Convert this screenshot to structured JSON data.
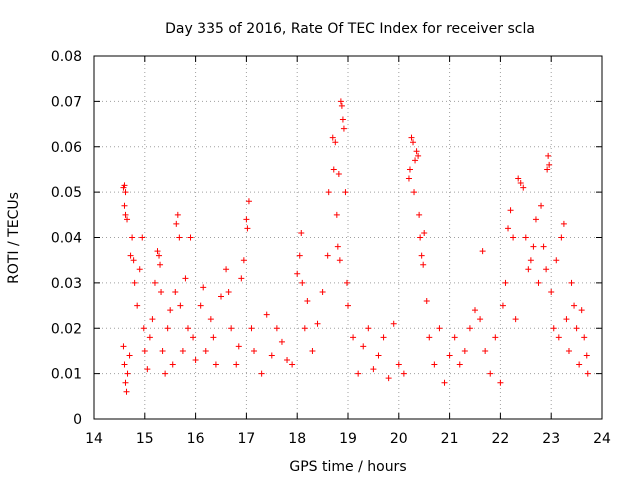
{
  "chart_data": {
    "type": "scatter",
    "title": "Day 335 of 2016, Rate Of TEC Index for receiver scla",
    "xlabel": "GPS time / hours",
    "ylabel": "ROTI / TECUs",
    "xlim": [
      14,
      24
    ],
    "ylim": [
      0,
      0.08
    ],
    "xticks": [
      14,
      15,
      16,
      17,
      18,
      19,
      20,
      21,
      22,
      23,
      24
    ],
    "yticks": [
      0,
      0.01,
      0.02,
      0.03,
      0.04,
      0.05,
      0.06,
      0.07,
      0.08
    ],
    "ytick_labels": [
      "0",
      "0.01",
      "0.02",
      "0.03",
      "0.04",
      "0.05",
      "0.06",
      "0.07",
      "0.08"
    ],
    "grid": true,
    "marker": "plus",
    "color": "#ff0000",
    "x_range_of_data": [
      14.55,
      23.75
    ],
    "series": [
      {
        "name": "ROTI",
        "points": [
          [
            14.58,
            0.051
          ],
          [
            14.6,
            0.0515
          ],
          [
            14.62,
            0.05
          ],
          [
            14.6,
            0.047
          ],
          [
            14.62,
            0.045
          ],
          [
            14.65,
            0.044
          ],
          [
            14.58,
            0.016
          ],
          [
            14.6,
            0.012
          ],
          [
            14.62,
            0.008
          ],
          [
            14.64,
            0.006
          ],
          [
            14.66,
            0.01
          ],
          [
            14.7,
            0.014
          ],
          [
            14.72,
            0.036
          ],
          [
            14.75,
            0.04
          ],
          [
            14.78,
            0.035
          ],
          [
            14.8,
            0.03
          ],
          [
            14.85,
            0.025
          ],
          [
            14.9,
            0.033
          ],
          [
            14.95,
            0.04
          ],
          [
            14.98,
            0.02
          ],
          [
            15.0,
            0.015
          ],
          [
            15.05,
            0.011
          ],
          [
            15.1,
            0.018
          ],
          [
            15.15,
            0.022
          ],
          [
            15.2,
            0.03
          ],
          [
            15.25,
            0.037
          ],
          [
            15.28,
            0.036
          ],
          [
            15.3,
            0.034
          ],
          [
            15.32,
            0.028
          ],
          [
            15.35,
            0.015
          ],
          [
            15.4,
            0.01
          ],
          [
            15.45,
            0.02
          ],
          [
            15.5,
            0.024
          ],
          [
            15.55,
            0.012
          ],
          [
            15.6,
            0.028
          ],
          [
            15.62,
            0.043
          ],
          [
            15.65,
            0.045
          ],
          [
            15.68,
            0.04
          ],
          [
            15.7,
            0.025
          ],
          [
            15.75,
            0.015
          ],
          [
            15.8,
            0.031
          ],
          [
            15.85,
            0.02
          ],
          [
            15.9,
            0.04
          ],
          [
            15.95,
            0.018
          ],
          [
            16.0,
            0.013
          ],
          [
            16.1,
            0.025
          ],
          [
            16.15,
            0.029
          ],
          [
            16.2,
            0.015
          ],
          [
            16.3,
            0.022
          ],
          [
            16.35,
            0.018
          ],
          [
            16.4,
            0.012
          ],
          [
            16.5,
            0.027
          ],
          [
            16.6,
            0.033
          ],
          [
            16.65,
            0.028
          ],
          [
            16.7,
            0.02
          ],
          [
            16.8,
            0.012
          ],
          [
            16.85,
            0.016
          ],
          [
            16.9,
            0.031
          ],
          [
            16.95,
            0.035
          ],
          [
            17.0,
            0.044
          ],
          [
            17.02,
            0.042
          ],
          [
            17.05,
            0.048
          ],
          [
            17.1,
            0.02
          ],
          [
            17.15,
            0.015
          ],
          [
            17.3,
            0.01
          ],
          [
            17.4,
            0.023
          ],
          [
            17.5,
            0.014
          ],
          [
            17.6,
            0.02
          ],
          [
            17.7,
            0.017
          ],
          [
            17.8,
            0.013
          ],
          [
            17.9,
            0.012
          ],
          [
            18.0,
            0.032
          ],
          [
            18.05,
            0.036
          ],
          [
            18.08,
            0.041
          ],
          [
            18.1,
            0.03
          ],
          [
            18.15,
            0.02
          ],
          [
            18.2,
            0.026
          ],
          [
            18.3,
            0.015
          ],
          [
            18.4,
            0.021
          ],
          [
            18.5,
            0.028
          ],
          [
            18.6,
            0.036
          ],
          [
            18.62,
            0.05
          ],
          [
            18.7,
            0.062
          ],
          [
            18.72,
            0.055
          ],
          [
            18.75,
            0.061
          ],
          [
            18.78,
            0.045
          ],
          [
            18.8,
            0.038
          ],
          [
            18.82,
            0.054
          ],
          [
            18.84,
            0.035
          ],
          [
            18.86,
            0.07
          ],
          [
            18.88,
            0.069
          ],
          [
            18.9,
            0.066
          ],
          [
            18.92,
            0.064
          ],
          [
            18.95,
            0.05
          ],
          [
            18.98,
            0.03
          ],
          [
            19.0,
            0.025
          ],
          [
            19.1,
            0.018
          ],
          [
            19.2,
            0.01
          ],
          [
            19.3,
            0.016
          ],
          [
            19.4,
            0.02
          ],
          [
            19.5,
            0.011
          ],
          [
            19.6,
            0.014
          ],
          [
            19.7,
            0.018
          ],
          [
            19.8,
            0.009
          ],
          [
            19.9,
            0.021
          ],
          [
            20.0,
            0.012
          ],
          [
            20.1,
            0.01
          ],
          [
            20.2,
            0.053
          ],
          [
            20.22,
            0.055
          ],
          [
            20.25,
            0.062
          ],
          [
            20.28,
            0.061
          ],
          [
            20.3,
            0.05
          ],
          [
            20.32,
            0.057
          ],
          [
            20.35,
            0.059
          ],
          [
            20.38,
            0.058
          ],
          [
            20.4,
            0.045
          ],
          [
            20.42,
            0.04
          ],
          [
            20.45,
            0.036
          ],
          [
            20.48,
            0.034
          ],
          [
            20.5,
            0.041
          ],
          [
            20.55,
            0.026
          ],
          [
            20.6,
            0.018
          ],
          [
            20.7,
            0.012
          ],
          [
            20.8,
            0.02
          ],
          [
            20.9,
            0.008
          ],
          [
            21.0,
            0.014
          ],
          [
            21.1,
            0.018
          ],
          [
            21.2,
            0.012
          ],
          [
            21.3,
            0.015
          ],
          [
            21.4,
            0.02
          ],
          [
            21.5,
            0.024
          ],
          [
            21.6,
            0.022
          ],
          [
            21.65,
            0.037
          ],
          [
            21.7,
            0.015
          ],
          [
            21.8,
            0.01
          ],
          [
            21.9,
            0.018
          ],
          [
            22.0,
            0.008
          ],
          [
            22.05,
            0.025
          ],
          [
            22.1,
            0.03
          ],
          [
            22.15,
            0.042
          ],
          [
            22.2,
            0.046
          ],
          [
            22.25,
            0.04
          ],
          [
            22.3,
            0.022
          ],
          [
            22.35,
            0.053
          ],
          [
            22.4,
            0.052
          ],
          [
            22.45,
            0.051
          ],
          [
            22.5,
            0.04
          ],
          [
            22.55,
            0.033
          ],
          [
            22.6,
            0.035
          ],
          [
            22.65,
            0.038
          ],
          [
            22.7,
            0.044
          ],
          [
            22.75,
            0.03
          ],
          [
            22.8,
            0.047
          ],
          [
            22.85,
            0.038
          ],
          [
            22.9,
            0.033
          ],
          [
            22.92,
            0.055
          ],
          [
            22.94,
            0.058
          ],
          [
            22.96,
            0.056
          ],
          [
            23.0,
            0.028
          ],
          [
            23.05,
            0.02
          ],
          [
            23.1,
            0.035
          ],
          [
            23.15,
            0.018
          ],
          [
            23.2,
            0.04
          ],
          [
            23.25,
            0.043
          ],
          [
            23.3,
            0.022
          ],
          [
            23.35,
            0.015
          ],
          [
            23.4,
            0.03
          ],
          [
            23.45,
            0.025
          ],
          [
            23.5,
            0.02
          ],
          [
            23.55,
            0.012
          ],
          [
            23.6,
            0.024
          ],
          [
            23.65,
            0.018
          ],
          [
            23.7,
            0.014
          ],
          [
            23.72,
            0.01
          ]
        ]
      }
    ]
  }
}
